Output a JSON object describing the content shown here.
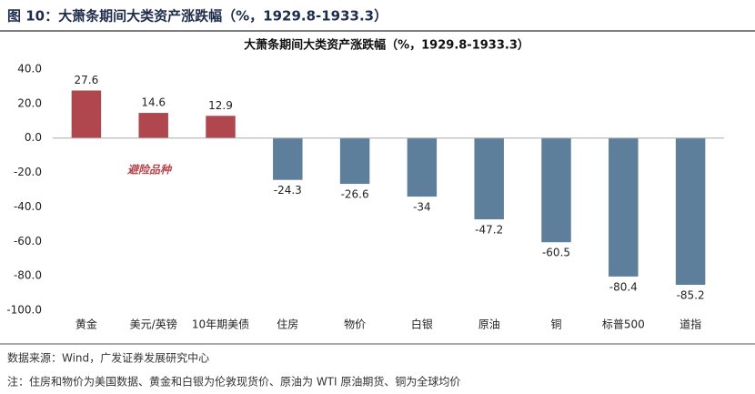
{
  "header": {
    "title": "图 10：大萧条期间大类资产涨跌幅（%，1929.8-1933.3）"
  },
  "chart_data": {
    "type": "bar",
    "title": "大萧条期间大类资产涨跌幅（%，1929.8-1933.3）",
    "categories": [
      "黄金",
      "美元/英镑",
      "10年期美债",
      "住房",
      "物价",
      "白银",
      "原油",
      "铜",
      "标普500",
      "道指"
    ],
    "values": [
      27.6,
      14.6,
      12.9,
      -24.3,
      -26.6,
      -34.0,
      -47.2,
      -60.5,
      -80.4,
      -85.2
    ],
    "colors": [
      "#b0474f",
      "#b0474f",
      "#b0474f",
      "#5e7f9b",
      "#5e7f9b",
      "#5e7f9b",
      "#5e7f9b",
      "#5e7f9b",
      "#5e7f9b",
      "#5e7f9b"
    ],
    "ylim": [
      -100,
      40
    ],
    "yticks": [
      {
        "value": 40,
        "label": "40.0"
      },
      {
        "value": 20,
        "label": "20.0"
      },
      {
        "value": 0,
        "label": "0.0"
      },
      {
        "value": -20,
        "label": "-20.0"
      },
      {
        "value": -40,
        "label": "-40.0"
      },
      {
        "value": -60,
        "label": "-60.0"
      },
      {
        "value": -80,
        "label": "-80.0"
      },
      {
        "value": -100,
        "label": "-100.0"
      }
    ],
    "grid": false,
    "annotation": "避险品种"
  },
  "footer": {
    "source": "数据来源：Wind，广发证券发展研究中心",
    "note": "注：住房和物价为美国数据、黄金和白银为伦敦现货价、原油为 WTI 原油期货、铜为全球均价"
  }
}
